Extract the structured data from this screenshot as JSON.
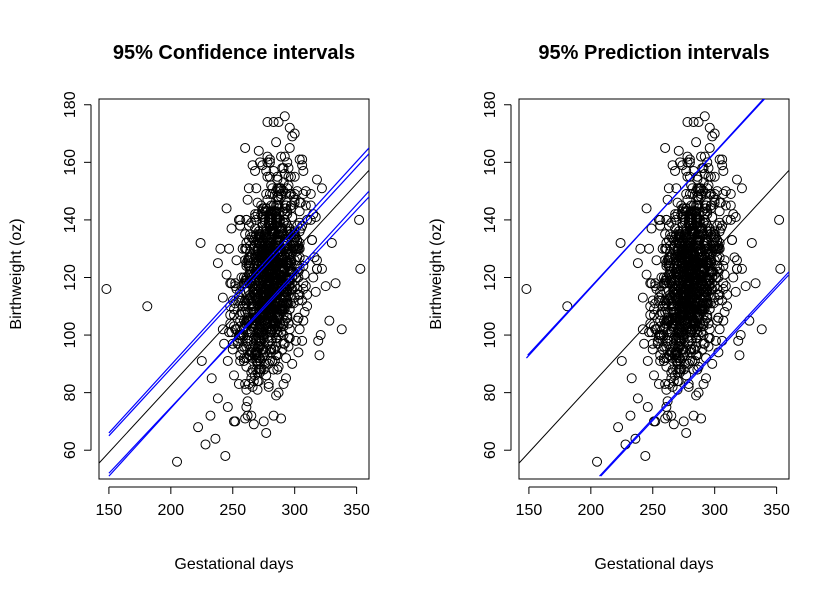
{
  "chart_data": [
    {
      "type": "scatter",
      "title": "95% Confidence intervals",
      "xlabel": "Gestational days",
      "ylabel": "Birthweight (oz)",
      "xlim": [
        142,
        360
      ],
      "ylim": [
        50,
        182
      ],
      "x_ticks": [
        150,
        200,
        250,
        300,
        350
      ],
      "y_ticks": [
        60,
        80,
        100,
        120,
        140,
        160,
        180
      ],
      "grid": false,
      "legend": "none",
      "fit_line": {
        "name": "",
        "color": "#000000",
        "intercept": -10.75,
        "slope": 0.4666
      },
      "interval_lines": [
        {
          "kind": "lower",
          "color": "#0000ff",
          "points": [
            [
              150,
              51
            ],
            [
              360,
              150
            ]
          ]
        },
        {
          "kind": "lower",
          "color": "#0000ff",
          "points": [
            [
              150,
              52
            ],
            [
              360,
              148
            ]
          ]
        },
        {
          "kind": "upper",
          "color": "#0000ff",
          "points": [
            [
              150,
              66
            ],
            [
              360,
              165
            ]
          ]
        },
        {
          "kind": "upper",
          "color": "#0000ff",
          "points": [
            [
              150,
              65
            ],
            [
              360,
              163
            ]
          ]
        }
      ],
      "cloud": {
        "n": 1150,
        "x_center": 280,
        "x_spread": 13,
        "y_center": 120,
        "y_spread": 16,
        "extra_points": [
          [
            148,
            116
          ],
          [
            181,
            110
          ],
          [
            205,
            56
          ],
          [
            224,
            132
          ],
          [
            225,
            91
          ],
          [
            222,
            68
          ],
          [
            228,
            62
          ],
          [
            232,
            72
          ],
          [
            236,
            64
          ],
          [
            238,
            78
          ],
          [
            233,
            85
          ],
          [
            244,
            58
          ],
          [
            240,
            130
          ],
          [
            245,
            144
          ],
          [
            248,
            110
          ],
          [
            246,
            75
          ],
          [
            252,
            70
          ],
          [
            255,
            140
          ],
          [
            262,
            72
          ],
          [
            268,
            157
          ],
          [
            272,
            160
          ],
          [
            275,
            70
          ],
          [
            278,
            174
          ],
          [
            283,
            174
          ],
          [
            287,
            174
          ],
          [
            292,
            176
          ],
          [
            296,
            172
          ],
          [
            300,
            170
          ],
          [
            289,
            71
          ],
          [
            283,
            72
          ],
          [
            298,
            90
          ],
          [
            300,
            155
          ],
          [
            302,
            150
          ],
          [
            305,
            146
          ],
          [
            310,
            140
          ],
          [
            313,
            145
          ],
          [
            315,
            142
          ],
          [
            317,
            115
          ],
          [
            318,
            123
          ],
          [
            320,
            93
          ],
          [
            321,
            100
          ],
          [
            322,
            123
          ],
          [
            325,
            117
          ],
          [
            328,
            105
          ],
          [
            330,
            132
          ],
          [
            333,
            118
          ],
          [
            338,
            102
          ],
          [
            352,
            140
          ],
          [
            353,
            123
          ],
          [
            310,
            110
          ],
          [
            306,
            98
          ],
          [
            315,
            120
          ],
          [
            319,
            98
          ],
          [
            260,
            165
          ],
          [
            296,
            165
          ],
          [
            265,
            85
          ],
          [
            250,
            95
          ],
          [
            256,
            103
          ],
          [
            242,
            113
          ],
          [
            238,
            125
          ]
        ]
      }
    },
    {
      "type": "scatter",
      "title": "95% Prediction intervals",
      "xlabel": "Gestational days",
      "ylabel": "Birthweight (oz)",
      "xlim": [
        142,
        360
      ],
      "ylim": [
        50,
        182
      ],
      "x_ticks": [
        150,
        200,
        250,
        300,
        350
      ],
      "y_ticks": [
        60,
        80,
        100,
        120,
        140,
        160,
        180
      ],
      "grid": false,
      "legend": "none",
      "fit_line": {
        "name": "",
        "color": "#000000",
        "intercept": -10.75,
        "slope": 0.4666
      },
      "interval_lines": [
        {
          "kind": "upper",
          "color": "#0000ff",
          "points": [
            [
              148,
              92
            ],
            [
              350,
              187
            ]
          ]
        },
        {
          "kind": "upper",
          "color": "#0000ff",
          "points": [
            [
              149,
              93
            ],
            [
              351,
              187
            ]
          ]
        },
        {
          "kind": "lower",
          "color": "#0000ff",
          "points": [
            [
              208,
              51
            ],
            [
              360,
              121
            ]
          ]
        },
        {
          "kind": "lower",
          "color": "#0000ff",
          "points": [
            [
              207,
              51
            ],
            [
              360,
              122
            ]
          ]
        }
      ],
      "cloud": {
        "n": 1150,
        "x_center": 280,
        "x_spread": 13,
        "y_center": 120,
        "y_spread": 16,
        "extra_points": [
          [
            148,
            116
          ],
          [
            181,
            110
          ],
          [
            205,
            56
          ],
          [
            224,
            132
          ],
          [
            225,
            91
          ],
          [
            222,
            68
          ],
          [
            228,
            62
          ],
          [
            232,
            72
          ],
          [
            236,
            64
          ],
          [
            238,
            78
          ],
          [
            233,
            85
          ],
          [
            244,
            58
          ],
          [
            240,
            130
          ],
          [
            245,
            144
          ],
          [
            248,
            110
          ],
          [
            246,
            75
          ],
          [
            252,
            70
          ],
          [
            255,
            140
          ],
          [
            262,
            72
          ],
          [
            268,
            157
          ],
          [
            272,
            160
          ],
          [
            275,
            70
          ],
          [
            278,
            174
          ],
          [
            283,
            174
          ],
          [
            287,
            174
          ],
          [
            292,
            176
          ],
          [
            296,
            172
          ],
          [
            300,
            170
          ],
          [
            289,
            71
          ],
          [
            283,
            72
          ],
          [
            298,
            90
          ],
          [
            300,
            155
          ],
          [
            302,
            150
          ],
          [
            305,
            146
          ],
          [
            310,
            140
          ],
          [
            313,
            145
          ],
          [
            315,
            142
          ],
          [
            317,
            115
          ],
          [
            318,
            123
          ],
          [
            320,
            93
          ],
          [
            321,
            100
          ],
          [
            322,
            123
          ],
          [
            325,
            117
          ],
          [
            328,
            105
          ],
          [
            330,
            132
          ],
          [
            333,
            118
          ],
          [
            338,
            102
          ],
          [
            352,
            140
          ],
          [
            353,
            123
          ],
          [
            310,
            110
          ],
          [
            306,
            98
          ],
          [
            315,
            120
          ],
          [
            319,
            98
          ],
          [
            260,
            165
          ],
          [
            296,
            165
          ],
          [
            265,
            85
          ],
          [
            250,
            95
          ],
          [
            256,
            103
          ],
          [
            242,
            113
          ],
          [
            238,
            125
          ]
        ]
      }
    }
  ]
}
